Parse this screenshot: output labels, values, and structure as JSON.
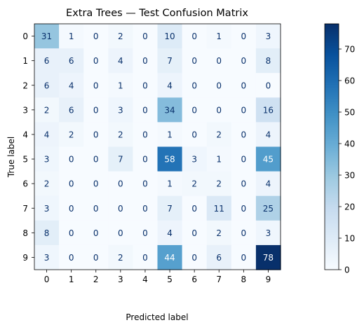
{
  "chart_data": {
    "type": "heatmap",
    "title": "Extra Trees — Test Confusion Matrix",
    "xlabel": "Predicted label",
    "ylabel": "True label",
    "x_categories": [
      "0",
      "1",
      "2",
      "3",
      "4",
      "5",
      "6",
      "7",
      "8",
      "9"
    ],
    "y_categories": [
      "0",
      "1",
      "2",
      "3",
      "4",
      "5",
      "6",
      "7",
      "8",
      "9"
    ],
    "matrix": [
      [
        31,
        1,
        0,
        2,
        0,
        10,
        0,
        1,
        0,
        3
      ],
      [
        6,
        6,
        0,
        4,
        0,
        7,
        0,
        0,
        0,
        8
      ],
      [
        6,
        4,
        0,
        1,
        0,
        4,
        0,
        0,
        0,
        0
      ],
      [
        2,
        6,
        0,
        3,
        0,
        34,
        0,
        0,
        0,
        16
      ],
      [
        4,
        2,
        0,
        2,
        0,
        1,
        0,
        2,
        0,
        4
      ],
      [
        3,
        0,
        0,
        7,
        0,
        58,
        3,
        1,
        0,
        45
      ],
      [
        2,
        0,
        0,
        0,
        0,
        1,
        2,
        2,
        0,
        4
      ],
      [
        3,
        0,
        0,
        0,
        0,
        7,
        0,
        11,
        0,
        25
      ],
      [
        8,
        0,
        0,
        0,
        0,
        4,
        0,
        2,
        0,
        3
      ],
      [
        3,
        0,
        0,
        2,
        0,
        44,
        0,
        6,
        0,
        78
      ]
    ],
    "colormap": "Blues",
    "color_range": [
      0,
      78
    ],
    "colorbar_ticks": [
      "0",
      "10",
      "20",
      "30",
      "40",
      "50",
      "60",
      "70"
    ],
    "grid": false,
    "legend": "colorbar-right"
  }
}
